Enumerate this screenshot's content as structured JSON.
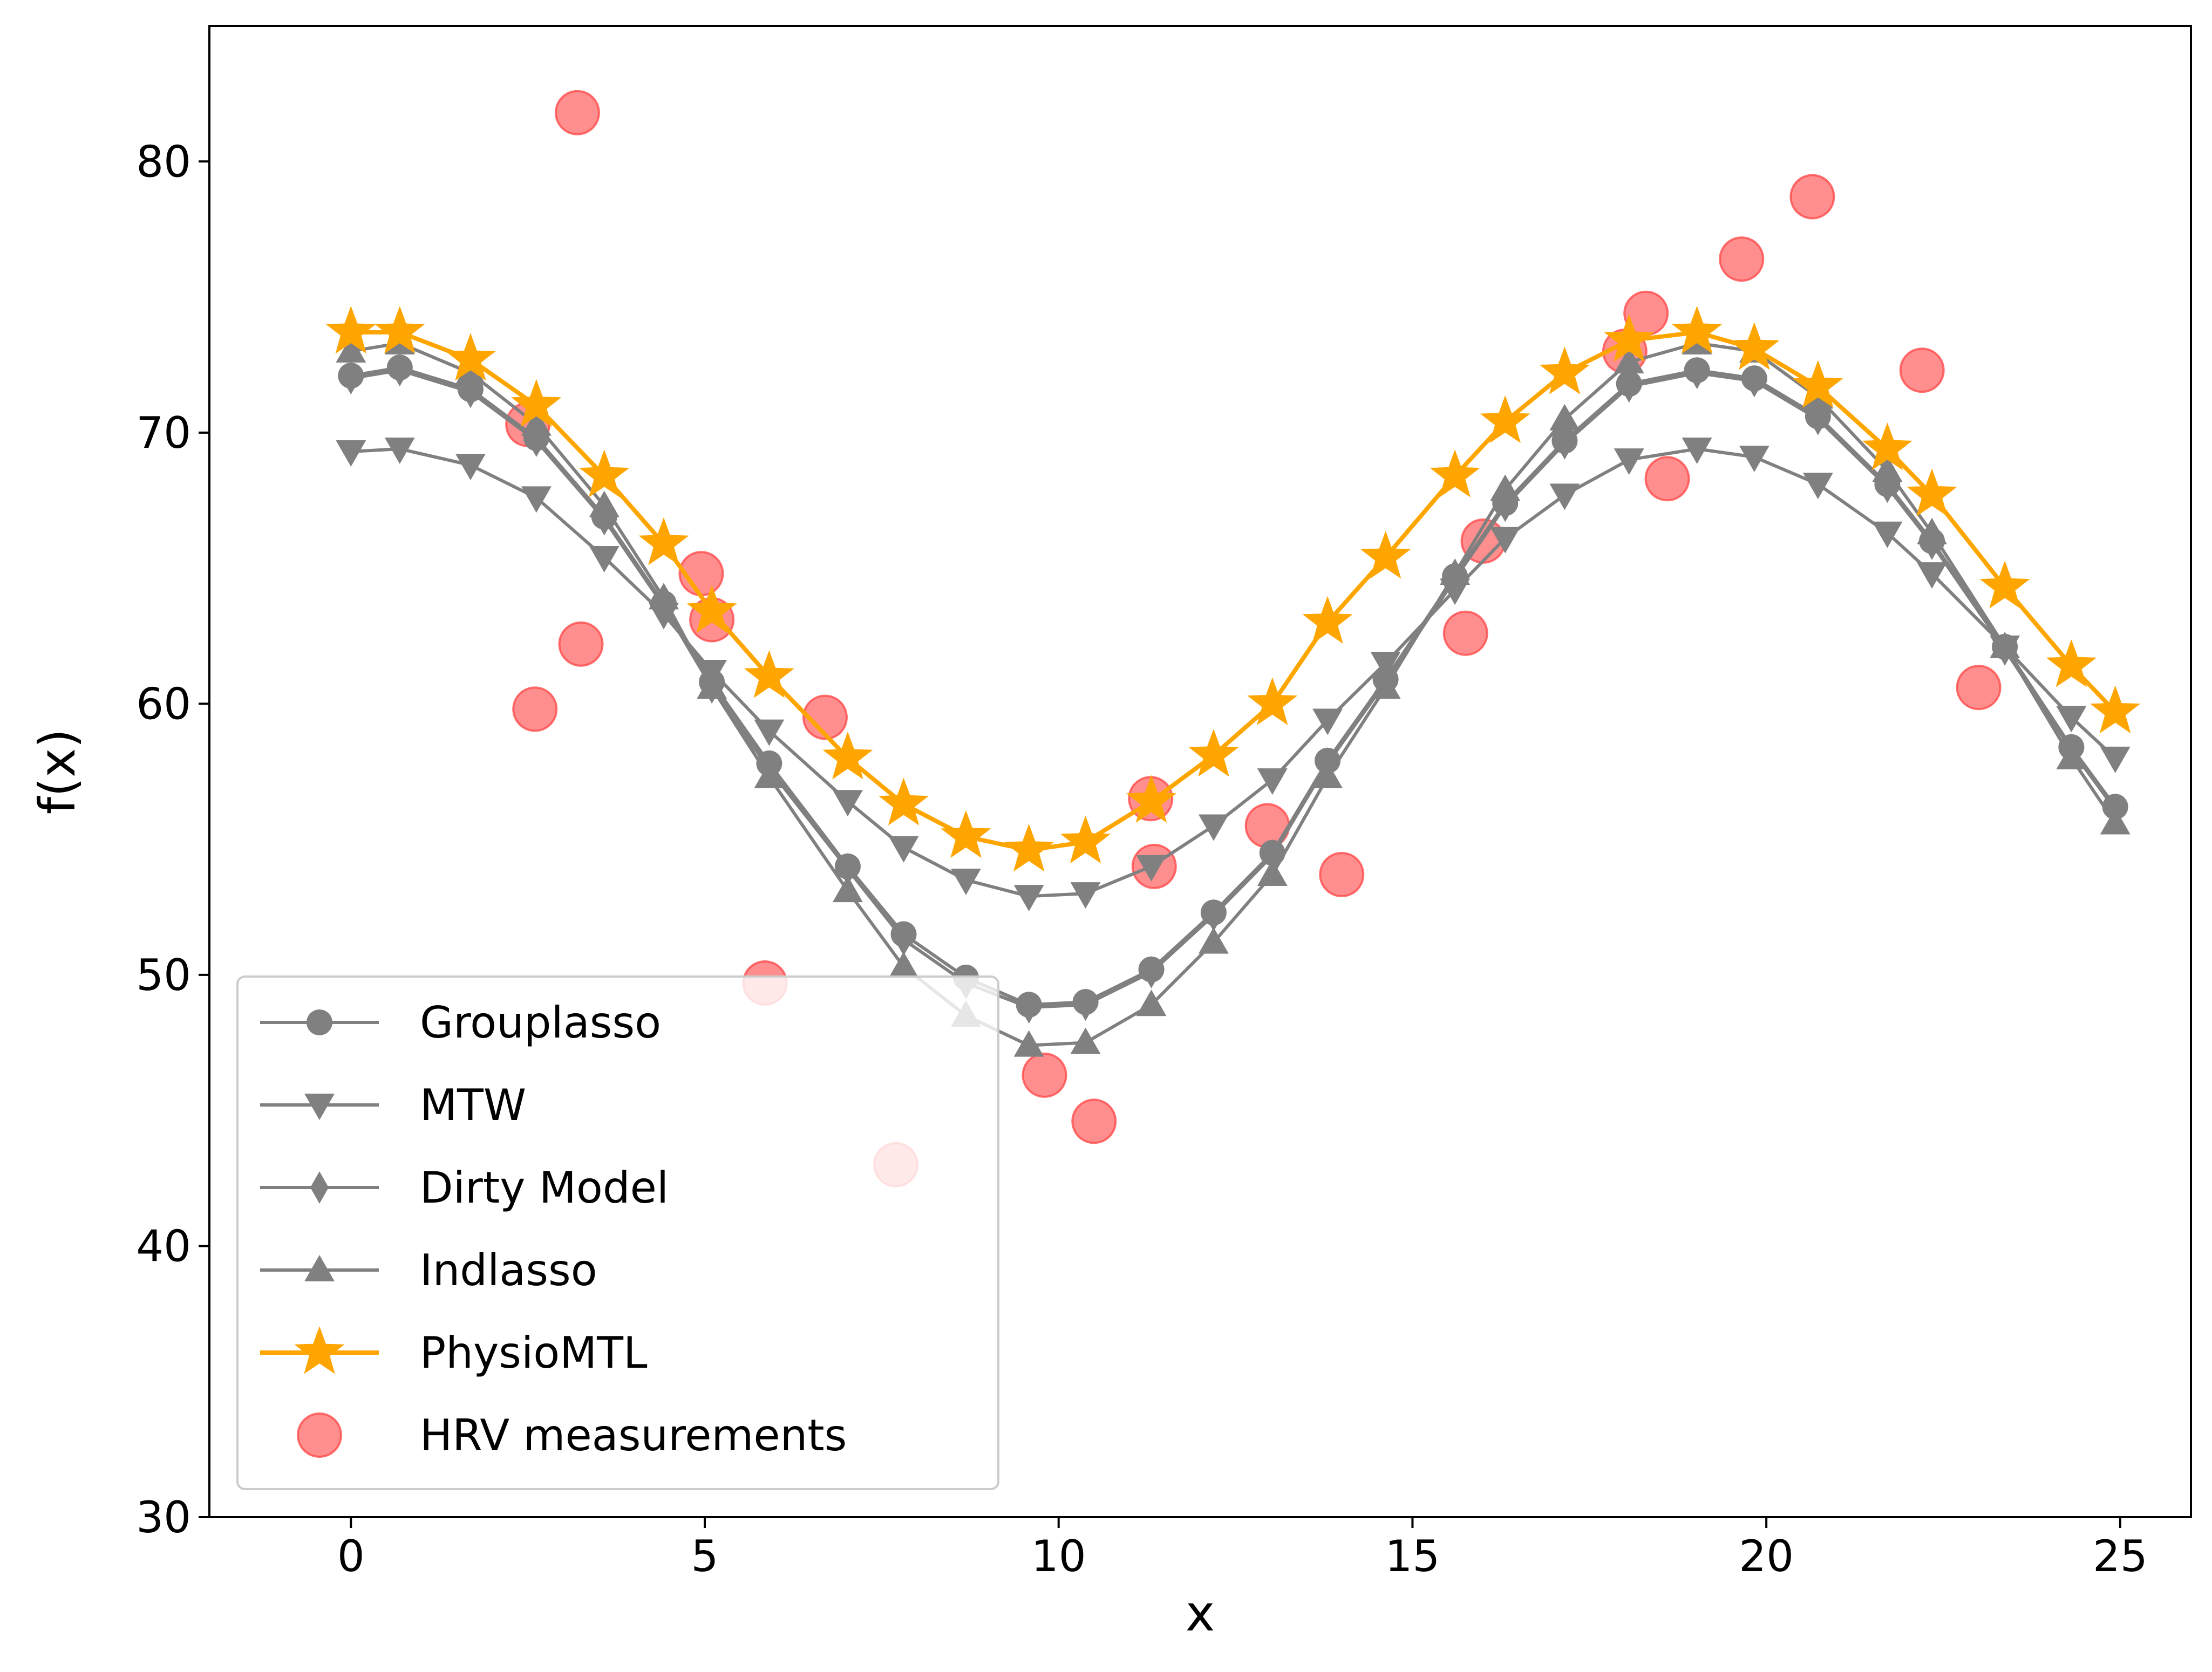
{
  "chart_data": {
    "type": "line",
    "title": "",
    "xlabel": "x",
    "ylabel": "f(x)",
    "xlim": [
      -2,
      26
    ],
    "ylim": [
      30,
      85
    ],
    "xticks": [
      0,
      5,
      10,
      15,
      20,
      25
    ],
    "yticks": [
      30,
      40,
      50,
      60,
      70,
      80
    ],
    "xtick_labels": [
      "0",
      "5",
      "10",
      "15",
      "20",
      "25"
    ],
    "ytick_labels": [
      "30",
      "40",
      "50",
      "60",
      "70",
      "80"
    ],
    "grid": false,
    "legend_position": "lower-left",
    "x": [
      0,
      0.69,
      1.69,
      2.62,
      3.58,
      4.42,
      5.1,
      5.91,
      7.02,
      7.81,
      8.69,
      9.58,
      10.38,
      11.31,
      12.19,
      13.02,
      13.8,
      14.62,
      15.6,
      16.31,
      17.15,
      18.06,
      19.02,
      19.83,
      20.73,
      21.71,
      22.34,
      23.37,
      24.31,
      24.93
    ],
    "series": [
      {
        "name": "Grouplasso",
        "marker": "circle",
        "color": "#808080",
        "values": [
          72.1,
          72.4,
          71.6,
          69.8,
          66.9,
          63.7,
          60.8,
          57.8,
          54.0,
          51.5,
          49.9,
          48.9,
          49.0,
          50.2,
          52.3,
          54.5,
          57.9,
          60.9,
          64.7,
          67.4,
          69.7,
          71.8,
          72.3,
          72.0,
          70.6,
          68.1,
          66.0,
          62.1,
          58.4,
          56.2
        ]
      },
      {
        "name": "MTW",
        "marker": "triangle-down",
        "color": "#808080",
        "values": [
          69.3,
          69.4,
          68.8,
          67.6,
          65.4,
          63.3,
          61.2,
          59.0,
          56.4,
          54.7,
          53.5,
          52.9,
          53.0,
          54.0,
          55.5,
          57.2,
          59.4,
          61.5,
          64.2,
          66.1,
          67.7,
          69.0,
          69.4,
          69.1,
          68.1,
          66.3,
          64.8,
          62.1,
          59.5,
          58.0
        ]
      },
      {
        "name": "Dirty Model",
        "marker": "thin-diamond",
        "color": "#808080",
        "values": [
          72.0,
          72.3,
          71.5,
          69.7,
          66.8,
          63.6,
          60.6,
          57.6,
          53.9,
          51.3,
          49.7,
          48.8,
          48.9,
          50.1,
          52.2,
          54.4,
          57.8,
          60.8,
          64.6,
          67.3,
          69.6,
          71.7,
          72.2,
          71.9,
          70.5,
          68.0,
          65.9,
          62.0,
          58.3,
          56.1
        ]
      },
      {
        "name": "Indlasso",
        "marker": "triangle-up",
        "color": "#808080",
        "values": [
          73.0,
          73.3,
          72.2,
          70.3,
          67.3,
          63.9,
          60.6,
          57.3,
          53.1,
          50.3,
          48.5,
          47.4,
          47.5,
          48.9,
          51.2,
          53.7,
          57.3,
          60.6,
          64.8,
          67.9,
          70.5,
          72.6,
          73.3,
          73.0,
          71.3,
          68.6,
          66.3,
          62.1,
          58.0,
          55.6
        ]
      },
      {
        "name": "PhysioMTL",
        "marker": "star",
        "color": "#FFA500",
        "values": [
          73.7,
          73.7,
          72.7,
          71.0,
          68.4,
          65.9,
          63.4,
          61.0,
          58.0,
          56.3,
          55.1,
          54.6,
          54.9,
          56.4,
          58.1,
          60.0,
          63.0,
          65.4,
          68.4,
          70.4,
          72.2,
          73.4,
          73.7,
          73.1,
          71.7,
          69.4,
          67.7,
          64.3,
          61.4,
          59.7
        ]
      }
    ],
    "scatter": {
      "name": "HRV measurements",
      "color": "#FF4444",
      "points": [
        {
          "x": 3.2,
          "y": 81.8
        },
        {
          "x": 2.5,
          "y": 70.3
        },
        {
          "x": 2.6,
          "y": 59.8
        },
        {
          "x": 3.25,
          "y": 62.2
        },
        {
          "x": 4.95,
          "y": 64.8
        },
        {
          "x": 5.1,
          "y": 63.1
        },
        {
          "x": 6.7,
          "y": 59.5
        },
        {
          "x": 5.85,
          "y": 49.7
        },
        {
          "x": 7.7,
          "y": 43.0
        },
        {
          "x": 9.8,
          "y": 46.3
        },
        {
          "x": 10.5,
          "y": 44.6
        },
        {
          "x": 11.3,
          "y": 56.5
        },
        {
          "x": 11.35,
          "y": 54.0
        },
        {
          "x": 12.95,
          "y": 55.5
        },
        {
          "x": 14.0,
          "y": 53.7
        },
        {
          "x": 15.75,
          "y": 62.6
        },
        {
          "x": 16.0,
          "y": 66.0
        },
        {
          "x": 18.0,
          "y": 73.0
        },
        {
          "x": 18.3,
          "y": 74.4
        },
        {
          "x": 18.6,
          "y": 68.3
        },
        {
          "x": 19.65,
          "y": 76.4
        },
        {
          "x": 20.65,
          "y": 78.7
        },
        {
          "x": 22.2,
          "y": 72.3
        },
        {
          "x": 23.0,
          "y": 60.6
        }
      ]
    }
  }
}
